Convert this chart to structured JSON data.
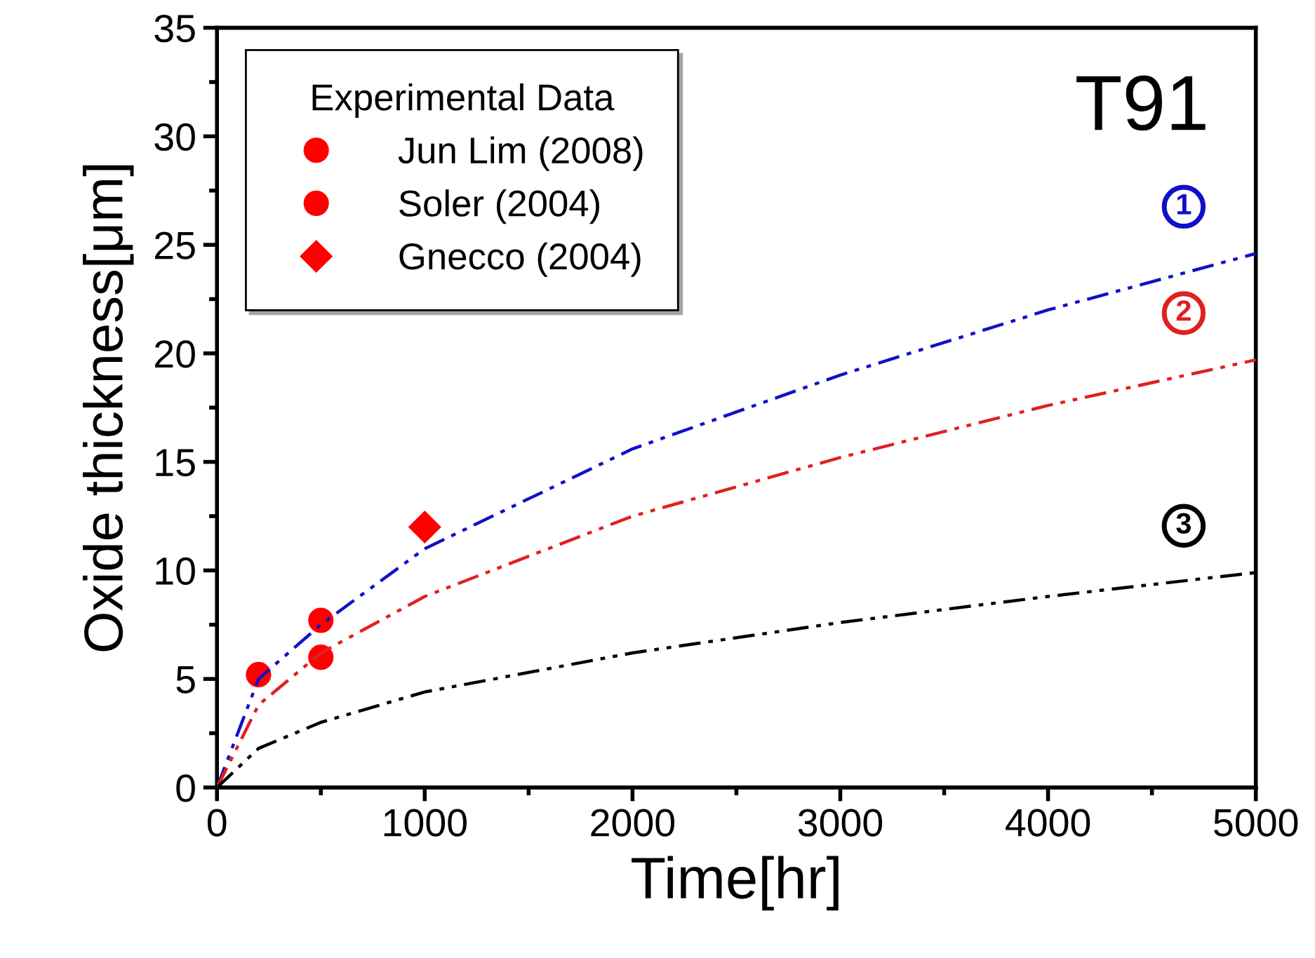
{
  "chart_data": {
    "type": "line",
    "xlabel": "Time[hr]",
    "ylabel": "Oxide thickness[μm]",
    "xlim": [
      0,
      5000
    ],
    "ylim": [
      0,
      35
    ],
    "xticks": [
      0,
      1000,
      2000,
      3000,
      4000,
      5000
    ],
    "yticks": [
      0,
      5,
      10,
      15,
      20,
      25,
      30,
      35
    ],
    "legend": "top left",
    "legend_title": "Experimental Data",
    "grid": false,
    "series": [
      {
        "color": "#1010c8",
        "line_style": "dashed",
        "marker": "none",
        "x": [
          0,
          200,
          500,
          1000,
          2000,
          3000,
          4000,
          5000
        ],
        "values": [
          0,
          5.0,
          7.5,
          11.0,
          15.6,
          19.0,
          22.0,
          24.6
        ]
      },
      {
        "color": "#e02020",
        "line_style": "dashed",
        "marker": "none",
        "x": [
          0,
          200,
          500,
          1000,
          2000,
          3000,
          4000,
          5000
        ],
        "values": [
          0,
          3.8,
          6.2,
          8.8,
          12.5,
          15.2,
          17.6,
          19.7
        ]
      },
      {
        "color": "#000000",
        "line_style": "dashed",
        "marker": "none",
        "x": [
          0,
          200,
          500,
          1000,
          2000,
          3000,
          4000,
          5000
        ],
        "values": [
          0,
          1.8,
          3.0,
          4.4,
          6.2,
          7.6,
          8.8,
          9.9
        ]
      },
      {
        "type": "scatter",
        "name": "Jun Lim (2008)",
        "color": "#ff0000",
        "marker": "circle",
        "x": [
          200,
          500
        ],
        "values": [
          5.2,
          7.7
        ]
      },
      {
        "type": "scatter",
        "name": "Soler (2004)",
        "color": "#ff0000",
        "marker": "circle",
        "x": [
          500
        ],
        "values": [
          6.0
        ]
      },
      {
        "type": "scatter",
        "name": "Gnecco (2004)",
        "color": "#ff0000",
        "marker": "diamond",
        "x": [
          1000
        ],
        "values": [
          12.0
        ]
      }
    ],
    "annotations": [
      "1",
      "2",
      "3",
      "T91"
    ]
  }
}
